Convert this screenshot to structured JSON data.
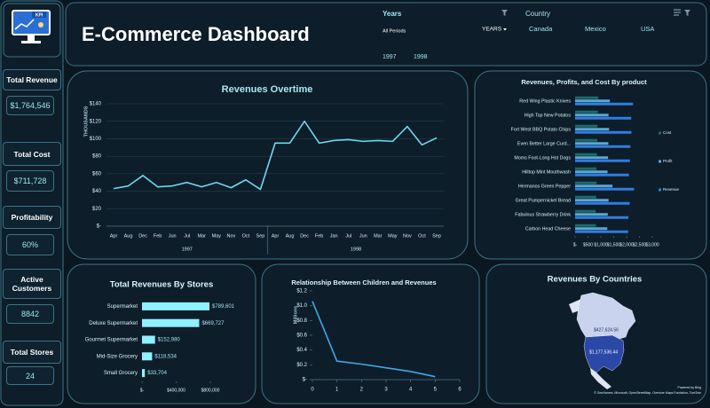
{
  "header": {
    "title": "E-Commerce Dashboard",
    "logo_text": "KPI",
    "years_label": "Years",
    "all_periods": "All Periods",
    "years": [
      "1997",
      "1998"
    ],
    "years_button": "YEARS",
    "country_label": "Country",
    "countries": [
      "Canada",
      "Mexico",
      "USA"
    ]
  },
  "kpis": [
    {
      "label": "Total Revenue",
      "value": "$1,764,546"
    },
    {
      "label": "Total Cost",
      "value": "$711,728"
    },
    {
      "label": "Profitability",
      "value": "60%"
    },
    {
      "label": "Active Customers",
      "value": "8842"
    },
    {
      "label": "Total Stores",
      "value": "24"
    }
  ],
  "chart_data": [
    {
      "type": "line",
      "title": "Revenues Overtime",
      "y_label": "THOUSANDS",
      "color": "#6fd8f0",
      "grid": true,
      "groups": [
        {
          "label": "1997",
          "categories": [
            "Apr",
            "Aug",
            "Dec",
            "Feb",
            "Jun",
            "Jul",
            "Mar",
            "May",
            "Nov",
            "Oct",
            "Sep"
          ],
          "values": [
            43,
            46,
            58,
            45,
            46,
            50,
            45,
            50,
            44,
            53,
            42
          ]
        },
        {
          "label": "1998",
          "categories": [
            "Apr",
            "Aug",
            "Dec",
            "Feb",
            "Jan",
            "Jul",
            "Jun",
            "Mar",
            "May",
            "Nov",
            "Oct",
            "Sep"
          ],
          "values": [
            95,
            95,
            120,
            95,
            98,
            99,
            97,
            98,
            97,
            114,
            93,
            101
          ]
        }
      ],
      "ylim": [
        0,
        140
      ],
      "yticks": [
        {
          "value": 0,
          "label": "$-"
        },
        {
          "value": 20,
          "label": "$20"
        },
        {
          "value": 40,
          "label": "$40"
        },
        {
          "value": 60,
          "label": "$60"
        },
        {
          "value": 80,
          "label": "$80"
        },
        {
          "value": 100,
          "label": "$100"
        },
        {
          "value": 120,
          "label": "$120"
        },
        {
          "value": 140,
          "label": "$140"
        }
      ]
    },
    {
      "type": "bar",
      "title": "Revenues, Profits, and Cost By product",
      "legend": "right",
      "categories": [
        "Red Wing Plastic Knives",
        "High Top New Potatos",
        "Fort West BBQ Potato Chips",
        "Even Better Large Curd...",
        "Moms Foot-Long Hot Dogs",
        "Hilltop Mint Mouthwash",
        "Hermanos Green Pepper",
        "Great Pumpernickel Bread",
        "Fabulous Strawberry Drink",
        "Carbon Head Cheese"
      ],
      "series": [
        {
          "name": "Cost",
          "color": "#1e6a6a",
          "values": [
            900,
            880,
            870,
            860,
            850,
            830,
            840,
            820,
            800,
            810
          ]
        },
        {
          "name": "Profit",
          "color": "#5aa7d6",
          "values": [
            1350,
            1300,
            1320,
            1290,
            1280,
            1260,
            1450,
            1300,
            1270,
            1250
          ]
        },
        {
          "name": "Revenue",
          "color": "#2f7de0",
          "values": [
            2250,
            2180,
            2190,
            2150,
            2130,
            2090,
            2290,
            2120,
            2070,
            2060
          ]
        }
      ],
      "xlim": [
        0,
        3000
      ],
      "xticks": [
        {
          "value": 0,
          "label": "$-"
        },
        {
          "value": 500,
          "label": "$500"
        },
        {
          "value": 1000,
          "label": "$1,000"
        },
        {
          "value": 1500,
          "label": "$1,500"
        },
        {
          "value": 2000,
          "label": "$2,000"
        },
        {
          "value": 2500,
          "label": "$2,500"
        },
        {
          "value": 3000,
          "label": "$3,000"
        }
      ]
    },
    {
      "type": "bar",
      "title": "Total Revenues By Stores",
      "color": "#8ff0ff",
      "categories": [
        "Supermarket",
        "Deluxe Supermarket",
        "Gourmet Supermarket",
        "Mid-Size Grocery",
        "Small Grocery"
      ],
      "values": [
        789601,
        669727,
        152980,
        118534,
        33704
      ],
      "value_labels": [
        "$789,601",
        "$669,727",
        "$152,980",
        "$118,534",
        "$33,704"
      ],
      "xlim": [
        0,
        800000
      ],
      "xticks": [
        {
          "value": 0,
          "label": "$-"
        },
        {
          "value": 400000,
          "label": "$400,000"
        },
        {
          "value": 800000,
          "label": "$800,000"
        }
      ]
    },
    {
      "type": "line",
      "title": "Relationship Between Children and Revenues",
      "y_label": "Millions",
      "color": "#3fa8e8",
      "x": [
        0,
        1,
        2,
        3,
        4,
        5
      ],
      "values": [
        1.06,
        0.25,
        0.21,
        0.16,
        0.11,
        0.04
      ],
      "xlim": [
        0,
        6
      ],
      "xticks": [
        0,
        1,
        2,
        3,
        4,
        5,
        6
      ],
      "ylim": [
        0,
        1.2
      ],
      "yticks": [
        {
          "value": 0,
          "label": "$-"
        },
        {
          "value": 0.2,
          "label": "$0.2"
        },
        {
          "value": 0.4,
          "label": "$0.4"
        },
        {
          "value": 0.6,
          "label": "$0.6"
        },
        {
          "value": 0.8,
          "label": "$0.8"
        },
        {
          "value": 1,
          "label": "$1.0"
        },
        {
          "value": 1.2,
          "label": "$1.2"
        }
      ]
    },
    {
      "type": "map",
      "title": "Revenues By Countries",
      "values": [
        427624.56,
        1177536.44
      ],
      "value_labels": [
        "$427,624.56",
        "$1,177,536.44"
      ],
      "colors": [
        "#c9d3ee",
        "#2a48a8"
      ],
      "notes": [
        "Powered by Bing",
        "© GeoNames, Microsoft, OpenStreetMap, Overture Maps Fundation, TomTom"
      ]
    }
  ]
}
